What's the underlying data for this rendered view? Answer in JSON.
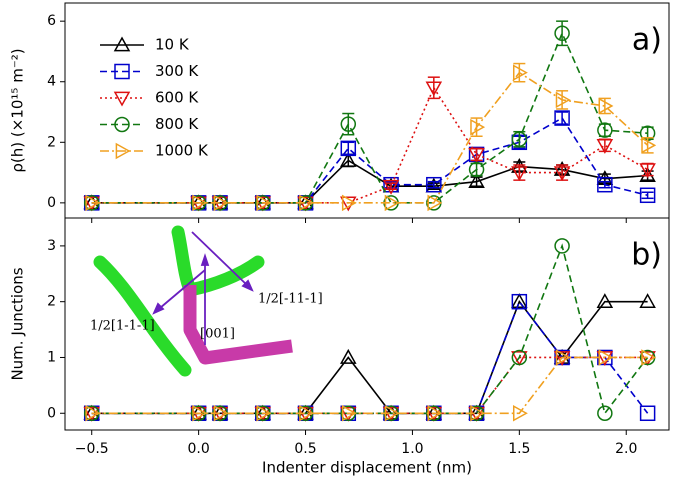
{
  "chart_data": [
    {
      "type": "line",
      "panel_label": "a)",
      "ylabel": "ρ(h) (×10¹⁵ m⁻²)",
      "x": [
        -0.5,
        0.0,
        0.1,
        0.3,
        0.5,
        0.7,
        0.9,
        1.1,
        1.3,
        1.5,
        1.7,
        1.9,
        2.1
      ],
      "xlim": [
        -0.625,
        2.2
      ],
      "ylim": [
        -0.5,
        6.6
      ],
      "yticks": [
        0,
        2,
        4,
        6
      ],
      "legend": "upper left",
      "series": [
        {
          "name": "10 K",
          "color": "#000000",
          "marker": "^",
          "linestyle": "solid",
          "values": [
            0,
            0,
            0,
            0,
            0,
            1.4,
            0.55,
            0.55,
            0.7,
            1.2,
            1.1,
            0.8,
            0.9
          ],
          "errors": [
            0,
            0,
            0,
            0,
            0,
            0.2,
            0.1,
            0.1,
            0.15,
            0.15,
            0.15,
            0.15,
            0.15
          ]
        },
        {
          "name": "300 K",
          "color": "#0000cc",
          "marker": "s",
          "linestyle": "dashed",
          "values": [
            0,
            0,
            0,
            0,
            0,
            1.8,
            0.6,
            0.6,
            1.6,
            2.0,
            2.8,
            0.6,
            0.25
          ],
          "errors": [
            0,
            0,
            0,
            0,
            0,
            0.2,
            0.1,
            0.1,
            0.2,
            0.2,
            0.2,
            0.1,
            0.1
          ]
        },
        {
          "name": "600 K",
          "color": "#dd1111",
          "marker": "v",
          "linestyle": "dotted",
          "values": [
            0,
            0,
            0,
            0,
            0,
            0,
            0.55,
            3.8,
            1.6,
            1.0,
            1.0,
            1.9,
            1.1
          ],
          "errors": [
            0,
            0,
            0,
            0,
            0,
            0,
            0.1,
            0.35,
            0.2,
            0.25,
            0.25,
            0.2,
            0.2
          ]
        },
        {
          "name": "800 K",
          "color": "#117711",
          "marker": "o",
          "linestyle": "dashed",
          "values": [
            0,
            0,
            0,
            0,
            0,
            2.6,
            0,
            0,
            1.1,
            2.1,
            5.6,
            2.4,
            2.3
          ],
          "errors": [
            0,
            0,
            0,
            0,
            0,
            0.35,
            0,
            0,
            0.2,
            0.25,
            0.4,
            0.2,
            0.2
          ]
        },
        {
          "name": "1000 K",
          "color": "#f0a020",
          "marker": ">",
          "linestyle": "dashdot",
          "values": [
            0,
            0,
            0,
            0,
            0,
            0,
            0,
            0,
            2.5,
            4.3,
            3.4,
            3.2,
            1.9
          ],
          "errors": [
            0,
            0,
            0,
            0,
            0,
            0,
            0,
            0,
            0.3,
            0.3,
            0.3,
            0.25,
            0.25
          ]
        }
      ]
    },
    {
      "type": "line",
      "panel_label": "b)",
      "ylabel": "Num. Junctions",
      "xlabel": "Indenter displacement (nm)",
      "x": [
        -0.5,
        0.0,
        0.1,
        0.3,
        0.5,
        0.7,
        0.9,
        1.1,
        1.3,
        1.5,
        1.7,
        1.9,
        2.1
      ],
      "xlim": [
        -0.625,
        2.2
      ],
      "ylim": [
        -0.3,
        3.5
      ],
      "yticks": [
        0,
        1,
        2,
        3
      ],
      "xticks": [
        {
          "value": -0.5,
          "label": "−0.5"
        },
        {
          "value": 0.0,
          "label": "0.0"
        },
        {
          "value": 0.5,
          "label": "0.5"
        },
        {
          "value": 1.0,
          "label": "1.0"
        },
        {
          "value": 1.5,
          "label": "1.5"
        },
        {
          "value": 2.0,
          "label": "2.0"
        }
      ],
      "annotations": [
        "1/2[1-1-1]",
        "[001]",
        "1/2[-11-1]"
      ],
      "series": [
        {
          "name": "10 K",
          "color": "#000000",
          "marker": "^",
          "linestyle": "solid",
          "values": [
            0,
            0,
            0,
            0,
            0,
            1,
            0,
            0,
            0,
            2,
            1,
            2,
            2
          ]
        },
        {
          "name": "300 K",
          "color": "#0000cc",
          "marker": "s",
          "linestyle": "dashed",
          "values": [
            0,
            0,
            0,
            0,
            0,
            0,
            0,
            0,
            0,
            2,
            1,
            1,
            0
          ]
        },
        {
          "name": "600 K",
          "color": "#dd1111",
          "marker": "v",
          "linestyle": "dotted",
          "values": [
            0,
            0,
            0,
            0,
            0,
            0,
            0,
            0,
            0,
            1,
            1,
            1,
            1
          ]
        },
        {
          "name": "800 K",
          "color": "#117711",
          "marker": "o",
          "linestyle": "dashed",
          "values": [
            0,
            0,
            0,
            0,
            0,
            0,
            0,
            0,
            0,
            1,
            3,
            0,
            1
          ]
        },
        {
          "name": "1000 K",
          "color": "#f0a020",
          "marker": ">",
          "linestyle": "dashdot",
          "values": [
            0,
            0,
            0,
            0,
            0,
            0,
            0,
            0,
            0,
            0,
            1,
            1,
            1
          ]
        }
      ]
    }
  ]
}
